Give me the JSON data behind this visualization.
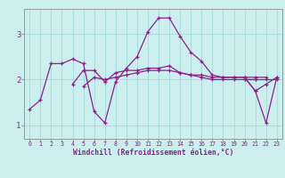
{
  "xlabel": "Windchill (Refroidissement éolien,°C)",
  "bg_color": "#cceeee",
  "grid_color": "#aadddd",
  "line_color": "#882288",
  "xlim": [
    -0.5,
    23.5
  ],
  "ylim": [
    0.7,
    3.55
  ],
  "xticks": [
    0,
    1,
    2,
    3,
    4,
    5,
    6,
    7,
    8,
    9,
    10,
    11,
    12,
    13,
    14,
    15,
    16,
    17,
    18,
    19,
    20,
    21,
    22,
    23
  ],
  "yticks": [
    1,
    2,
    3
  ],
  "lines": [
    [
      1.35,
      1.55,
      2.35,
      2.35,
      2.45,
      2.35,
      1.3,
      1.05,
      1.95,
      2.25,
      2.5,
      3.05,
      3.35,
      3.35,
      2.95,
      2.6,
      2.4,
      2.1,
      2.05,
      2.05,
      2.05,
      1.75,
      1.9,
      2.05
    ],
    [
      null,
      null,
      null,
      null,
      1.9,
      2.2,
      2.2,
      1.95,
      2.15,
      2.2,
      2.2,
      2.25,
      2.25,
      2.3,
      2.15,
      2.1,
      2.1,
      2.05,
      2.05,
      2.05,
      2.05,
      2.05,
      2.05,
      null
    ],
    [
      null,
      null,
      null,
      null,
      null,
      1.85,
      2.05,
      2.0,
      2.05,
      2.1,
      2.15,
      2.2,
      2.2,
      2.2,
      2.15,
      2.1,
      2.05,
      2.0,
      2.0,
      2.0,
      2.0,
      2.0,
      null,
      null
    ],
    [
      null,
      null,
      null,
      null,
      null,
      null,
      null,
      null,
      null,
      null,
      null,
      null,
      null,
      null,
      null,
      null,
      null,
      null,
      null,
      null,
      2.05,
      1.75,
      1.05,
      2.05
    ],
    [
      null,
      null,
      null,
      null,
      null,
      null,
      null,
      null,
      null,
      null,
      null,
      null,
      null,
      null,
      null,
      null,
      null,
      null,
      null,
      null,
      2.0,
      2.0,
      2.0,
      2.0
    ]
  ]
}
